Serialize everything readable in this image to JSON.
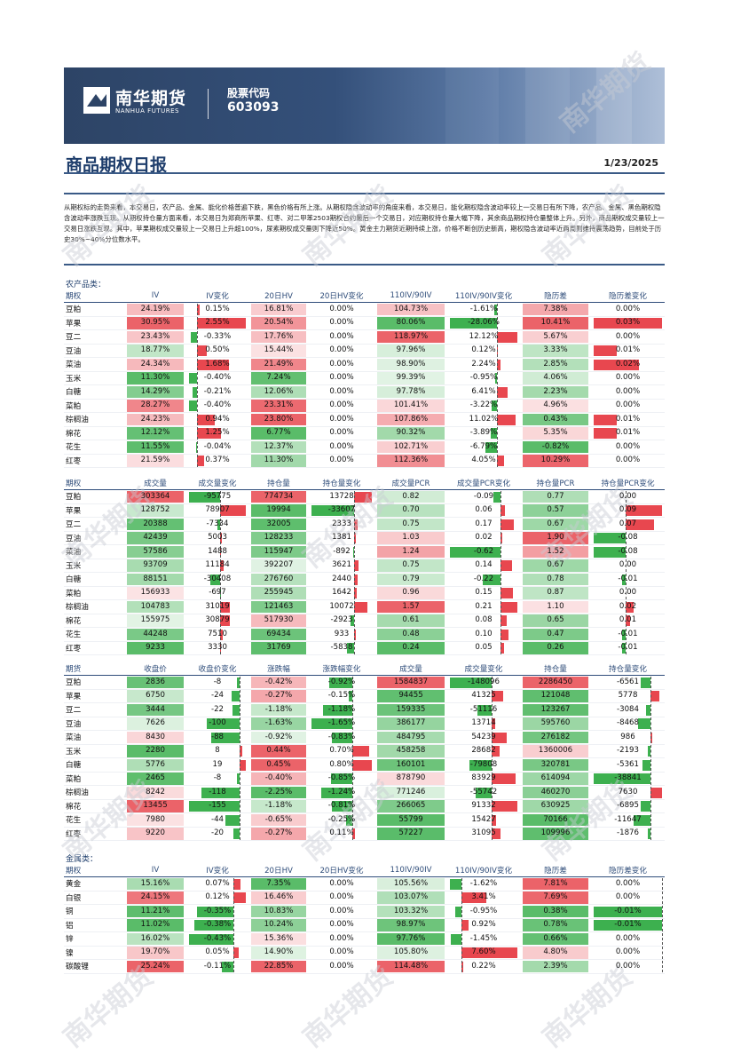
{
  "header": {
    "logo_cn": "南华期货",
    "logo_en": "NANHUA FUTURES",
    "code_label": "股票代码",
    "code_value": "603093"
  },
  "title": "商品期权日报",
  "date": "1/23/2025",
  "summary": "从期权标的走势来看，本交易日，农产品、金属、能化价格普遍下跌，黑色价格有所上涨。从期权隐含波动率的角度来看，本交易日，能化期权隐含波动率较上一交易日有所下降，农产品、金属、黑色期权隐含波动率涨跌互现。从期权持仓量方面来看，本交易日为郑商所苹果、红枣、对二甲苯2503期权合约最后一个交易日，对应期权持仓量大幅下降，其余商品期权持仓量整体上升。另外，商品期权成交量较上一交易日涨跌互现。其中，苹果期权成交量较上一交易日上升超100%，尿素期权成交量则下降近50%。黄金主力期货近期持续上涨，价格不断创历史新高，期权隐含波动率近两周则维持震荡趋势，目前处于历史30%~40%分位数水平。",
  "colors": {
    "red": "#e8474f",
    "green": "#3db04f",
    "navy": "#1f3e6c"
  },
  "sections": [
    {
      "label": "农产品类：",
      "tables": [
        {
          "headers": [
            "期权",
            "IV",
            "IV变化",
            "20日HV",
            "20日HV变化",
            "110IV/90IV",
            "110IV/90IV变化",
            "隐历差",
            "隐历差变化"
          ],
          "styles": [
            "heat",
            "bar",
            "heat",
            "plain",
            "heat",
            "bar",
            "heat",
            "bar"
          ],
          "rows": [
            [
              "豆粕",
              "24.19%",
              "0.15%",
              "16.81%",
              "0.00%",
              "104.73%",
              "-1.61%",
              "7.38%",
              "0.00%"
            ],
            [
              "苹果",
              "30.95%",
              "2.55%",
              "20.54%",
              "0.00%",
              "80.06%",
              "-28.06%",
              "10.41%",
              "0.03%"
            ],
            [
              "豆二",
              "23.43%",
              "-0.33%",
              "17.76%",
              "0.00%",
              "118.97%",
              "12.12%",
              "5.67%",
              "0.00%"
            ],
            [
              "豆油",
              "18.77%",
              "0.50%",
              "15.44%",
              "0.00%",
              "97.96%",
              "0.12%",
              "3.33%",
              "0.01%"
            ],
            [
              "菜油",
              "24.34%",
              "1.68%",
              "21.49%",
              "0.00%",
              "98.90%",
              "2.24%",
              "2.85%",
              "0.02%"
            ],
            [
              "玉米",
              "11.30%",
              "-0.40%",
              "7.24%",
              "0.00%",
              "99.39%",
              "-0.95%",
              "4.06%",
              "0.00%"
            ],
            [
              "白糖",
              "14.29%",
              "-0.21%",
              "12.06%",
              "0.00%",
              "97.78%",
              "6.41%",
              "2.23%",
              "0.00%"
            ],
            [
              "菜粕",
              "28.27%",
              "-0.40%",
              "23.31%",
              "0.00%",
              "101.41%",
              "-3.22%",
              "4.96%",
              "0.00%"
            ],
            [
              "棕榈油",
              "24.23%",
              "0.94%",
              "23.80%",
              "0.00%",
              "107.86%",
              "11.02%",
              "0.43%",
              "0.01%"
            ],
            [
              "棉花",
              "12.12%",
              "1.25%",
              "6.77%",
              "0.00%",
              "90.32%",
              "-3.89%",
              "5.35%",
              "0.01%"
            ],
            [
              "花生",
              "11.55%",
              "-0.04%",
              "12.37%",
              "0.00%",
              "102.71%",
              "-6.79%",
              "-0.82%",
              "0.00%"
            ],
            [
              "红枣",
              "21.59%",
              "0.37%",
              "11.30%",
              "0.00%",
              "112.36%",
              "4.05%",
              "10.29%",
              "0.00%"
            ]
          ]
        },
        {
          "headers": [
            "期权",
            "成交量",
            "成交量变化",
            "持仓量",
            "持仓量变化",
            "成交量PCR",
            "成交量PCR变化",
            "持仓量PCR",
            "持仓量PCR变化"
          ],
          "styles": [
            "heat",
            "bar",
            "heat",
            "bar",
            "heat",
            "bar",
            "heat",
            "bar"
          ],
          "rows": [
            [
              "豆粕",
              "303364",
              "-95775",
              "774734",
              "13728",
              "0.82",
              "-0.09",
              "0.77",
              "0.00"
            ],
            [
              "苹果",
              "128752",
              "78907",
              "19994",
              "-33607",
              "0.70",
              "0.06",
              "0.57",
              "0.09"
            ],
            [
              "豆二",
              "20388",
              "-7334",
              "32005",
              "2333",
              "0.75",
              "0.17",
              "0.67",
              "0.07"
            ],
            [
              "豆油",
              "42439",
              "5003",
              "128233",
              "1381",
              "1.03",
              "0.02",
              "1.90",
              "-0.08"
            ],
            [
              "菜油",
              "57586",
              "1488",
              "115947",
              "-892",
              "1.24",
              "-0.62",
              "1.52",
              "-0.08"
            ],
            [
              "玉米",
              "93709",
              "11184",
              "392207",
              "3621",
              "0.75",
              "0.14",
              "0.67",
              "0.00"
            ],
            [
              "白糖",
              "88151",
              "-30408",
              "276760",
              "2440",
              "0.79",
              "-0.22",
              "0.78",
              "-0.01"
            ],
            [
              "菜粕",
              "156933",
              "-697",
              "255945",
              "1642",
              "0.96",
              "0.15",
              "0.87",
              "0.00"
            ],
            [
              "棕榈油",
              "104783",
              "31019",
              "121463",
              "10072",
              "1.57",
              "0.21",
              "1.10",
              "0.02"
            ],
            [
              "棉花",
              "155975",
              "30879",
              "517930",
              "-2923",
              "0.61",
              "0.08",
              "0.65",
              "0.01"
            ],
            [
              "花生",
              "44248",
              "7510",
              "69434",
              "933",
              "0.48",
              "0.10",
              "0.47",
              "-0.01"
            ],
            [
              "红枣",
              "9233",
              "3330",
              "31769",
              "-5838",
              "0.24",
              "0.05",
              "0.26",
              "-0.01"
            ]
          ]
        },
        {
          "headers": [
            "期货",
            "收盘价",
            "收盘价变化",
            "涨跌幅",
            "涨跌幅变化",
            "成交量",
            "成交量变化",
            "持仓量",
            "持仓量变化"
          ],
          "styles": [
            "heat",
            "bar",
            "heat",
            "bar",
            "heat",
            "bar",
            "heat",
            "bar"
          ],
          "rows": [
            [
              "豆粕",
              "2836",
              "-8",
              "-0.42%",
              "-0.92%",
              "1584837",
              "-148096",
              "2286450",
              "-6561"
            ],
            [
              "苹果",
              "6750",
              "-24",
              "-0.27%",
              "-0.15%",
              "94455",
              "41325",
              "121048",
              "5778"
            ],
            [
              "豆二",
              "3444",
              "-22",
              "-1.18%",
              "-1.18%",
              "159335",
              "-51116",
              "123267",
              "-3084"
            ],
            [
              "豆油",
              "7626",
              "-100",
              "-1.63%",
              "-1.65%",
              "386177",
              "13714",
              "595760",
              "-8468"
            ],
            [
              "菜油",
              "8430",
              "-88",
              "-0.92%",
              "-0.83%",
              "484795",
              "54239",
              "276182",
              "986"
            ],
            [
              "玉米",
              "2280",
              "8",
              "0.44%",
              "0.70%",
              "458258",
              "28682",
              "1360006",
              "-2193"
            ],
            [
              "白糖",
              "5776",
              "19",
              "0.45%",
              "0.80%",
              "160101",
              "-79808",
              "320781",
              "-5361"
            ],
            [
              "菜粕",
              "2465",
              "-8",
              "-0.40%",
              "-0.85%",
              "878790",
              "83929",
              "614094",
              "-38841"
            ],
            [
              "棕榈油",
              "8242",
              "-118",
              "-2.25%",
              "-1.24%",
              "771246",
              "-55742",
              "460270",
              "7630"
            ],
            [
              "棉花",
              "13455",
              "-155",
              "-1.18%",
              "-0.81%",
              "266065",
              "91332",
              "630925",
              "-6895"
            ],
            [
              "花生",
              "7980",
              "-44",
              "-0.65%",
              "-0.25%",
              "55799",
              "15427",
              "70166",
              "-11647"
            ],
            [
              "红枣",
              "9220",
              "-20",
              "-0.27%",
              "0.11%",
              "57227",
              "31095",
              "109996",
              "-1876"
            ]
          ]
        }
      ]
    },
    {
      "label": "金属类：",
      "tables": [
        {
          "headers": [
            "期权",
            "IV",
            "IV变化",
            "20日HV",
            "20日HV变化",
            "110IV/90IV",
            "110IV/90IV变化",
            "隐历差",
            "隐历差变化"
          ],
          "styles": [
            "heat",
            "bar",
            "heat",
            "bar",
            "heat",
            "bar",
            "heat",
            "bar"
          ],
          "rows": [
            [
              "黄金",
              "15.16%",
              "0.07%",
              "7.35%",
              "0.00%",
              "105.56%",
              "-1.62%",
              "7.81%",
              "0.00%"
            ],
            [
              "白银",
              "24.15%",
              "0.12%",
              "16.46%",
              "0.00%",
              "103.07%",
              "3.41%",
              "7.69%",
              "0.00%"
            ],
            [
              "铜",
              "11.21%",
              "-0.35%",
              "10.83%",
              "0.00%",
              "103.32%",
              "-0.95%",
              "0.38%",
              "-0.01%"
            ],
            [
              "铝",
              "11.02%",
              "-0.38%",
              "10.24%",
              "0.00%",
              "98.97%",
              "0.92%",
              "0.78%",
              "-0.01%"
            ],
            [
              "锌",
              "16.02%",
              "-0.43%",
              "15.36%",
              "0.00%",
              "97.76%",
              "-1.45%",
              "0.66%",
              "0.00%"
            ],
            [
              "镍",
              "19.70%",
              "0.05%",
              "14.90%",
              "0.00%",
              "105.80%",
              "7.60%",
              "4.80%",
              "0.00%"
            ],
            [
              "碳酸锂",
              "25.24%",
              "-0.11%",
              "22.85%",
              "0.00%",
              "114.48%",
              "0.22%",
              "2.39%",
              "0.00%"
            ]
          ]
        }
      ]
    }
  ],
  "watermark": "南华期货"
}
